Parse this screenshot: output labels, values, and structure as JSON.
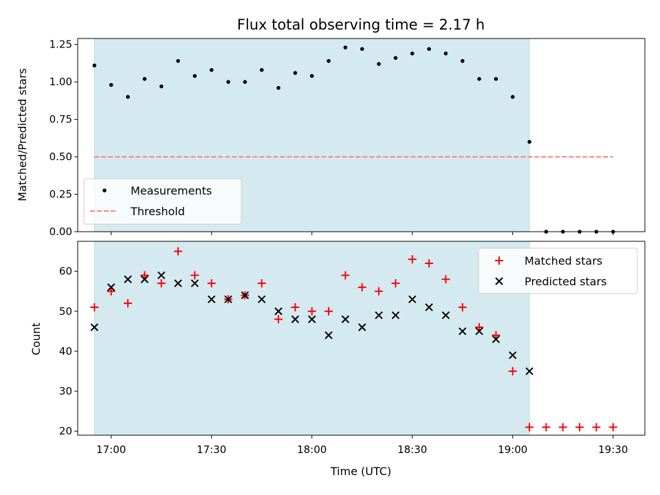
{
  "chart_data": [
    {
      "type": "scatter",
      "title": "Flux total observing time = 2.17 h",
      "xlabel": "",
      "ylabel": "Matched/Predicted stars",
      "ylim": [
        0,
        1.29
      ],
      "yticks": [
        "0.00",
        "0.25",
        "0.50",
        "0.75",
        "1.00",
        "1.25"
      ],
      "shaded_region": {
        "x_start": "16:55",
        "x_end": "19:05",
        "color": "#d4eaf0"
      },
      "threshold": {
        "name": "Threshold",
        "value": 0.5,
        "x_start": "16:55",
        "x_end": "19:30",
        "color": "#ff7f7f",
        "style": "dashed"
      },
      "series": [
        {
          "name": "Measurements",
          "marker": "dot",
          "color": "#000000",
          "x": [
            "16:55",
            "17:00",
            "17:05",
            "17:10",
            "17:15",
            "17:20",
            "17:25",
            "17:30",
            "17:35",
            "17:40",
            "17:45",
            "17:50",
            "17:55",
            "18:00",
            "18:05",
            "18:10",
            "18:15",
            "18:20",
            "18:25",
            "18:30",
            "18:35",
            "18:40",
            "18:45",
            "18:50",
            "18:55",
            "19:00",
            "19:05",
            "19:10",
            "19:15",
            "19:20",
            "19:25",
            "19:30"
          ],
          "y": [
            1.11,
            0.98,
            0.9,
            1.02,
            0.97,
            1.14,
            1.04,
            1.08,
            1.0,
            1.0,
            1.08,
            0.96,
            1.06,
            1.04,
            1.14,
            1.23,
            1.22,
            1.12,
            1.16,
            1.19,
            1.22,
            1.19,
            1.14,
            1.02,
            1.02,
            0.9,
            0.6,
            0.0,
            0.0,
            0.0,
            0.0,
            0.0
          ]
        }
      ],
      "legend": {
        "position": "lower-left"
      }
    },
    {
      "type": "scatter",
      "title": "",
      "xlabel": "Time (UTC)",
      "ylabel": "Count",
      "ylim": [
        19,
        67.5
      ],
      "yticks": [
        "20",
        "30",
        "40",
        "50",
        "60"
      ],
      "xticks": [
        "17:00",
        "17:30",
        "18:00",
        "18:30",
        "19:00",
        "19:30"
      ],
      "shaded_region": {
        "x_start": "16:55",
        "x_end": "19:05",
        "color": "#d4eaf0"
      },
      "series": [
        {
          "name": "Matched stars",
          "marker": "plus",
          "color": "#ff0000",
          "x": [
            "16:55",
            "17:00",
            "17:05",
            "17:10",
            "17:15",
            "17:20",
            "17:25",
            "17:30",
            "17:35",
            "17:40",
            "17:45",
            "17:50",
            "17:55",
            "18:00",
            "18:05",
            "18:10",
            "18:15",
            "18:20",
            "18:25",
            "18:30",
            "18:35",
            "18:40",
            "18:45",
            "18:50",
            "18:55",
            "19:00",
            "19:05",
            "19:10",
            "19:15",
            "19:20",
            "19:25",
            "19:30"
          ],
          "y": [
            51,
            55,
            52,
            59,
            57,
            65,
            59,
            57,
            53,
            54,
            57,
            48,
            51,
            50,
            50,
            59,
            56,
            55,
            57,
            63,
            62,
            58,
            51,
            46,
            44,
            35,
            21,
            21,
            21,
            21,
            21,
            21
          ]
        },
        {
          "name": "Predicted stars",
          "marker": "x",
          "color": "#000000",
          "x": [
            "16:55",
            "17:00",
            "17:05",
            "17:10",
            "17:15",
            "17:20",
            "17:25",
            "17:30",
            "17:35",
            "17:40",
            "17:45",
            "17:50",
            "17:55",
            "18:00",
            "18:05",
            "18:10",
            "18:15",
            "18:20",
            "18:25",
            "18:30",
            "18:35",
            "18:40",
            "18:45",
            "18:50",
            "18:55",
            "19:00",
            "19:05"
          ],
          "y": [
            46,
            56,
            58,
            58,
            59,
            57,
            57,
            53,
            53,
            54,
            53,
            50,
            48,
            48,
            44,
            48,
            46,
            49,
            49,
            53,
            51,
            49,
            45,
            45,
            43,
            39,
            35
          ]
        }
      ],
      "legend": {
        "position": "upper-right"
      }
    }
  ]
}
